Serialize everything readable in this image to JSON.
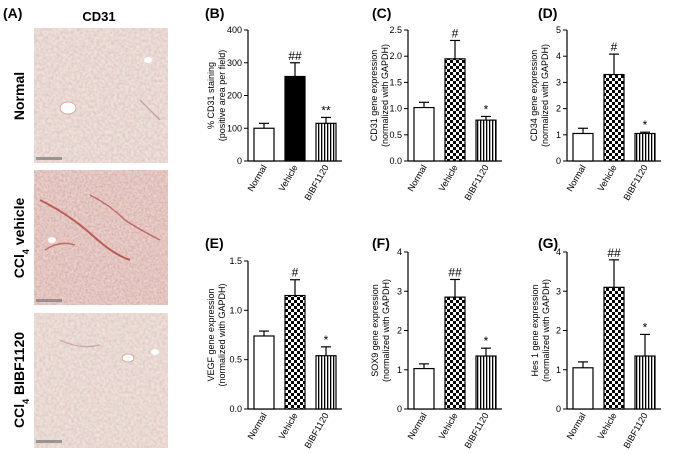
{
  "figure": {
    "panel_a": {
      "letter": "(A)",
      "title": "CD31",
      "rows": [
        {
          "label": "Normal",
          "sub": "",
          "suffix": ""
        },
        {
          "label": "CCl",
          "sub": "4",
          "suffix": " vehicle"
        },
        {
          "label": "CCl",
          "sub": "4",
          "suffix": " BIBF1120"
        }
      ]
    }
  },
  "colors": {
    "normal": "#ffffff",
    "vehicle_black": "#000000",
    "outline": "#000000",
    "tissue_bg": "#efe2d8"
  },
  "chart_data": [
    {
      "id": "B",
      "letter": "(B)",
      "type": "bar",
      "categories": [
        "Normal",
        "Vehicle",
        "BIBF1120"
      ],
      "values": [
        100,
        258,
        115
      ],
      "errors": [
        15,
        42,
        18
      ],
      "fills": [
        "white",
        "black",
        "vlines"
      ],
      "significance": [
        "",
        "##",
        "**"
      ],
      "ylabel": [
        "% CD31 staining",
        "(positive area per field)"
      ],
      "ylim": [
        0,
        400
      ],
      "yticks": [
        0,
        100,
        200,
        300,
        400
      ]
    },
    {
      "id": "C",
      "letter": "(C)",
      "type": "bar",
      "categories": [
        "Normal",
        "Vehicle",
        "BIBF1120"
      ],
      "values": [
        1.02,
        1.95,
        0.78
      ],
      "errors": [
        0.1,
        0.35,
        0.07
      ],
      "fills": [
        "white",
        "checker",
        "vlines"
      ],
      "significance": [
        "",
        "#",
        "*"
      ],
      "ylabel": [
        "CD31 gene expression",
        "(normalized with GAPDH)"
      ],
      "ylim": [
        0,
        2.5
      ],
      "yticks": [
        "0.0",
        "0.5",
        "1.0",
        "1.5",
        "2.0",
        "2.5"
      ]
    },
    {
      "id": "D",
      "letter": "(D)",
      "type": "bar",
      "categories": [
        "Normal",
        "Vehicle",
        "BIBF1120"
      ],
      "values": [
        1.05,
        3.3,
        1.05
      ],
      "errors": [
        0.2,
        0.78,
        0.05
      ],
      "fills": [
        "white",
        "checker",
        "vlines"
      ],
      "significance": [
        "",
        "#",
        "*"
      ],
      "ylabel": [
        "CD34 gene expression",
        "(normalized with GAPDH)"
      ],
      "ylim": [
        0,
        5
      ],
      "yticks": [
        0,
        1,
        2,
        3,
        4,
        5
      ]
    },
    {
      "id": "E",
      "letter": "(E)",
      "type": "bar",
      "categories": [
        "Normal",
        "Vehicle",
        "BIBF1120"
      ],
      "values": [
        0.74,
        1.15,
        0.54
      ],
      "errors": [
        0.05,
        0.16,
        0.09
      ],
      "fills": [
        "white",
        "checker",
        "vlines"
      ],
      "significance": [
        "",
        "#",
        "*"
      ],
      "ylabel": [
        "VEGF gene expression",
        "(normalized with GAPDH)"
      ],
      "ylim": [
        0,
        1.5
      ],
      "yticks": [
        "0.0",
        "0.5",
        "1.0",
        "1.5"
      ]
    },
    {
      "id": "F",
      "letter": "(F)",
      "type": "bar",
      "categories": [
        "Normal",
        "Vehicle",
        "BIBF1120"
      ],
      "values": [
        1.03,
        2.85,
        1.35
      ],
      "errors": [
        0.12,
        0.45,
        0.2
      ],
      "fills": [
        "white",
        "checker",
        "vlines"
      ],
      "significance": [
        "",
        "##",
        "*"
      ],
      "ylabel": [
        "SOX9 gene expression",
        "(normalized with GAPDH)"
      ],
      "ylim": [
        0,
        4
      ],
      "yticks": [
        0,
        1,
        2,
        3,
        4
      ]
    },
    {
      "id": "G",
      "letter": "(G)",
      "type": "bar",
      "categories": [
        "Normal",
        "Vehicle",
        "BIBF1120"
      ],
      "values": [
        1.05,
        3.1,
        1.35
      ],
      "errors": [
        0.15,
        0.7,
        0.55
      ],
      "fills": [
        "white",
        "checker",
        "vlines"
      ],
      "significance": [
        "",
        "##",
        "*"
      ],
      "ylabel": [
        "Hes 1 gene expression",
        "(normalized with GAPDH)"
      ],
      "ylim": [
        0,
        4
      ],
      "yticks": [
        0,
        1,
        2,
        3,
        4
      ]
    }
  ]
}
